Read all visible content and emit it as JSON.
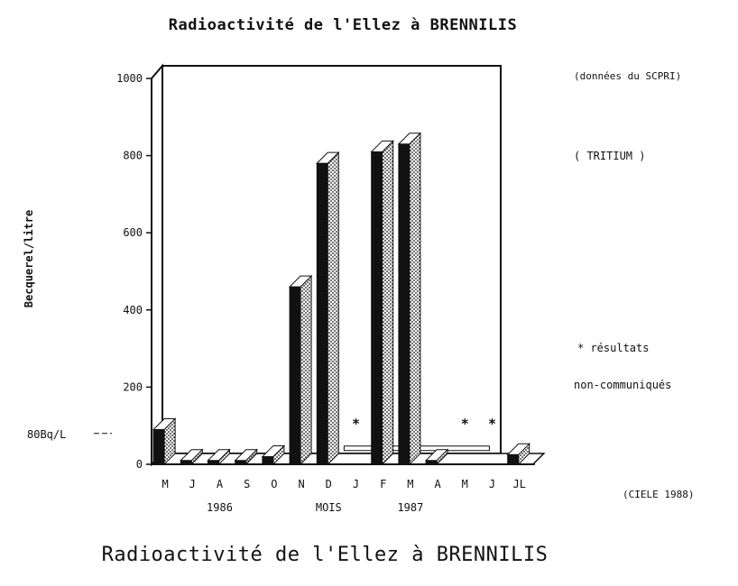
{
  "title": "Radioactivité de l'Ellez à BRENNILIS",
  "caption": "Radioactivité de l'Ellez à BRENNILIS",
  "source_note": "(données du SCPRI)",
  "substance": "( TRITIUM )",
  "star_note_1": "* résultats",
  "star_note_2": "non-communiqués",
  "credit": "(CIELE 1988)",
  "chart_data": {
    "type": "bar",
    "ylabel": "Becquerel/litre",
    "xlabel": "MOIS",
    "ylim": [
      0,
      1000
    ],
    "yticks": [
      "0",
      "200",
      "400",
      "600",
      "800",
      "1000"
    ],
    "reference_line": {
      "label": "80Bq/L",
      "value": 80
    },
    "categories": [
      "M",
      "J",
      "A",
      "S",
      "O",
      "N",
      "D",
      "J",
      "F",
      "M",
      "A",
      "M",
      "J",
      "JL"
    ],
    "year_labels": [
      {
        "label": "1986",
        "under_index": 2
      },
      {
        "label": "MOIS",
        "under_index": 6
      },
      {
        "label": "1987",
        "under_index": 9
      }
    ],
    "values": [
      90,
      10,
      10,
      10,
      20,
      460,
      780,
      null,
      810,
      830,
      10,
      null,
      null,
      25
    ],
    "not_communicated_marker": "*",
    "not_communicated": [
      7,
      11,
      12
    ]
  }
}
